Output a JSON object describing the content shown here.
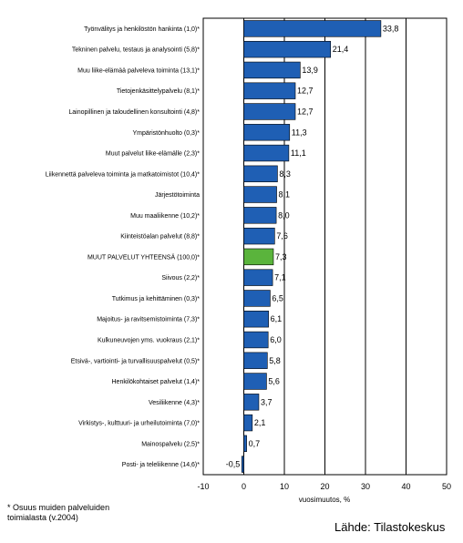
{
  "chart_data": {
    "type": "bar",
    "orientation": "horizontal",
    "categories": [
      "Työnvälitys ja henkilöstön hankinta (1,0)*",
      "Tekninen palvelu, testaus ja analysointi (5,8)*",
      "Muu liike-elämää palveleva toiminta (13,1)*",
      "Tietojenkäsittelypalvelu (8,1)*",
      "Lainopillinen ja taloudellinen konsultointi (4,8)*",
      "Ympäristönhuolto (0,3)*",
      "Muut palvelut liike-elämälle (2,3)*",
      "Liikennettä palveleva toiminta ja matkatoimistot (10,4)*",
      "Järjestötoiminta",
      "Muu maaliikenne (10,2)*",
      "Kiinteistöalan palvelut (8,8)*",
      "MUUT PALVELUT YHTEENSÄ (100,0)*",
      "Siivous (2,2)*",
      "Tutkimus ja kehittäminen (0,3)*",
      "Majoitus- ja ravitsemistoiminta (7,3)*",
      "Kulkuneuvojen yms. vuokraus (2,1)*",
      "Etsivä-, vartiointi- ja turvallisuuspalvelut (0,5)*",
      "Henkilökohtaiset palvelut (1,4)*",
      "Vesiliikenne (4,3)*",
      "Virkistys-, kulttuuri- ja urheilutoiminta (7,0)*",
      "Mainospalvelu (2,5)*",
      "Posti- ja teleliikenne (14,6)*"
    ],
    "values": [
      33.8,
      21.4,
      13.9,
      12.7,
      12.7,
      11.3,
      11.1,
      8.3,
      8.1,
      8.0,
      7.6,
      7.3,
      7.1,
      6.5,
      6.1,
      6.0,
      5.8,
      5.6,
      3.7,
      2.1,
      0.7,
      -0.5
    ],
    "value_labels": [
      "33,8",
      "21,4",
      "13,9",
      "12,7",
      "12,7",
      "11,3",
      "11,1",
      "8,3",
      "8,1",
      "8,0",
      "7,6",
      "7,3",
      "7,1",
      "6,5",
      "6,1",
      "6,0",
      "5,8",
      "5,6",
      "3,7",
      "2,1",
      "0,7",
      "-0,5"
    ],
    "highlight_index": 11,
    "xlim": [
      -10,
      50
    ],
    "xticks": [
      -10,
      0,
      10,
      20,
      30,
      40,
      50
    ],
    "xlabel": "vuosimuutos, %",
    "grid": true,
    "colors": {
      "bar": "#1f5fb4",
      "highlight": "#5ab43c",
      "grid": "#000000"
    }
  },
  "footnote": [
    "* Osuus muiden palveluiden",
    "toimialasta (v.2004)"
  ],
  "source": "Lähde: Tilastokeskus"
}
